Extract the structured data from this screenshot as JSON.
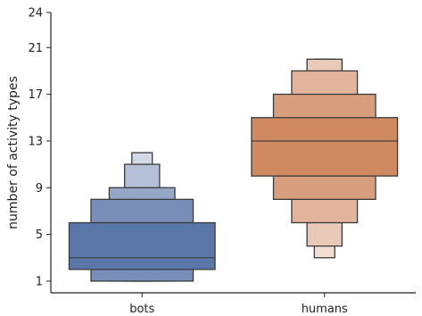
{
  "chart_data": {
    "type": "boxen",
    "title": "",
    "xlabel": "",
    "ylabel": "number of activity types",
    "ylim": [
      0,
      24
    ],
    "y_ticks": [
      1,
      5,
      9,
      13,
      17,
      21,
      24
    ],
    "categories": [
      "bots",
      "humans"
    ],
    "grid": false,
    "series": [
      {
        "category": "bots",
        "color": "#5b76a9",
        "median": 3,
        "levels": [
          {
            "low": 2,
            "high": 6
          },
          {
            "low": 1,
            "high": 8
          },
          {
            "low": 1,
            "high": 9
          },
          {
            "low": 1,
            "high": 11
          },
          {
            "low": 1,
            "high": 12
          }
        ]
      },
      {
        "category": "humans",
        "color": "#d08a62",
        "median": 13,
        "levels": [
          {
            "low": 10,
            "high": 15
          },
          {
            "low": 8,
            "high": 17
          },
          {
            "low": 6,
            "high": 19
          },
          {
            "low": 4,
            "high": 20
          },
          {
            "low": 3,
            "high": 20
          }
        ]
      }
    ]
  }
}
